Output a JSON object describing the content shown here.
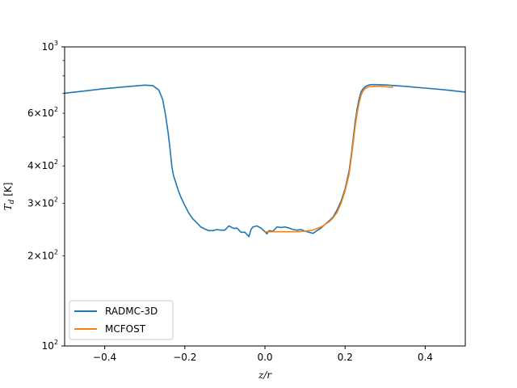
{
  "chart_data": {
    "type": "line",
    "xlabel": "z/r",
    "ylabel": "T_d [K]",
    "yscale": "log",
    "xlim": [
      -0.5,
      0.5
    ],
    "ylim": [
      100,
      1000
    ],
    "grid": false,
    "legend_position": "lower-left",
    "x_ticks": [
      {
        "value": -0.4,
        "label": "−0.4"
      },
      {
        "value": -0.2,
        "label": "−0.2"
      },
      {
        "value": 0.0,
        "label": "0.0"
      },
      {
        "value": 0.2,
        "label": "0.2"
      },
      {
        "value": 0.4,
        "label": "0.4"
      }
    ],
    "y_major_ticks": [
      {
        "value": 100,
        "base": "10",
        "exp": "2"
      },
      {
        "value": 1000,
        "base": "10",
        "exp": "3"
      }
    ],
    "y_minor_ticks": [
      {
        "value": 200,
        "mant": "2",
        "base": "10",
        "exp": "2"
      },
      {
        "value": 300,
        "mant": "3",
        "base": "10",
        "exp": "2"
      },
      {
        "value": 400,
        "mant": "4",
        "base": "10",
        "exp": "2"
      },
      {
        "value": 500,
        "mant": "",
        "base": "",
        "exp": ""
      },
      {
        "value": 600,
        "mant": "6",
        "base": "10",
        "exp": "2"
      },
      {
        "value": 700,
        "mant": "",
        "base": "",
        "exp": ""
      },
      {
        "value": 800,
        "mant": "",
        "base": "",
        "exp": ""
      },
      {
        "value": 900,
        "mant": "",
        "base": "",
        "exp": ""
      }
    ],
    "series": [
      {
        "name": "RADMC-3D",
        "color": "#1f77b4",
        "x": [
          -0.5,
          -0.45,
          -0.4,
          -0.35,
          -0.3,
          -0.28,
          -0.265,
          -0.255,
          -0.248,
          -0.242,
          -0.238,
          -0.235,
          -0.232,
          -0.228,
          -0.222,
          -0.216,
          -0.21,
          -0.2,
          -0.19,
          -0.18,
          -0.17,
          -0.16,
          -0.15,
          -0.14,
          -0.13,
          -0.12,
          -0.11,
          -0.1,
          -0.09,
          -0.08,
          -0.075,
          -0.07,
          -0.06,
          -0.05,
          -0.04,
          -0.035,
          -0.03,
          -0.02,
          -0.01,
          0.0,
          0.005,
          0.01,
          0.02,
          0.03,
          0.04,
          0.05,
          0.06,
          0.07,
          0.08,
          0.09,
          0.1,
          0.11,
          0.12,
          0.13,
          0.14,
          0.15,
          0.16,
          0.17,
          0.18,
          0.19,
          0.2,
          0.21,
          0.215,
          0.22,
          0.225,
          0.23,
          0.235,
          0.24,
          0.245,
          0.25,
          0.255,
          0.26,
          0.265,
          0.275,
          0.3,
          0.35,
          0.4,
          0.45,
          0.5
        ],
        "y": [
          700,
          712,
          725,
          735,
          745,
          742,
          718,
          665,
          590,
          520,
          470,
          430,
          395,
          370,
          350,
          330,
          315,
          295,
          278,
          266,
          258,
          250,
          246,
          243,
          243,
          245,
          244,
          244,
          252,
          248,
          247,
          248,
          240,
          240,
          232,
          245,
          250,
          252,
          248,
          241,
          237,
          243,
          242,
          250,
          249,
          250,
          248,
          245,
          244,
          245,
          242,
          240,
          238,
          243,
          248,
          255,
          262,
          270,
          285,
          305,
          335,
          385,
          430,
          490,
          560,
          620,
          670,
          708,
          725,
          735,
          742,
          746,
          748,
          748,
          746,
          738,
          728,
          718,
          706
        ]
      },
      {
        "name": "MCFOST",
        "color": "#ff7f0e",
        "x": [
          0.0,
          0.02,
          0.04,
          0.06,
          0.08,
          0.1,
          0.12,
          0.14,
          0.16,
          0.17,
          0.18,
          0.19,
          0.2,
          0.21,
          0.215,
          0.22,
          0.225,
          0.23,
          0.235,
          0.24,
          0.245,
          0.25,
          0.255,
          0.26,
          0.27,
          0.28,
          0.29,
          0.3,
          0.31,
          0.32
        ],
        "y": [
          241,
          241,
          241,
          241,
          241,
          242,
          244,
          250,
          260,
          268,
          280,
          300,
          330,
          375,
          420,
          475,
          540,
          600,
          650,
          690,
          712,
          725,
          732,
          736,
          738,
          738,
          738,
          736,
          734,
          733
        ]
      }
    ]
  }
}
